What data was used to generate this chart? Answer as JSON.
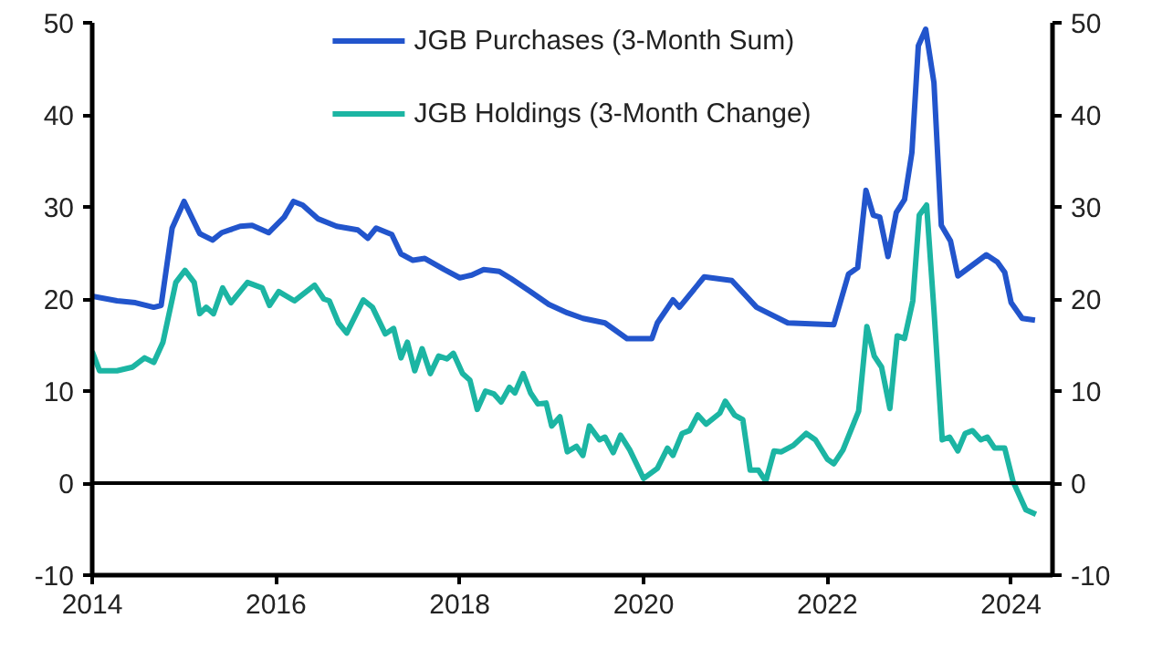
{
  "chart_data": {
    "type": "line",
    "xlim": [
      2014,
      2024.45
    ],
    "xticks": [
      2014,
      2016,
      2018,
      2020,
      2022,
      2024
    ],
    "ylim": [
      -10,
      50
    ],
    "yticks": [
      -10,
      0,
      10,
      20,
      30,
      40,
      50
    ],
    "y2lim": [
      -10,
      50
    ],
    "y2ticks": [
      -10,
      0,
      10,
      20,
      30,
      40,
      50
    ],
    "grid": false,
    "legend": "top",
    "marker": "none",
    "line_style": "solid",
    "ref_lines": [
      {
        "axis": "y",
        "value": 0,
        "color": "#000000"
      }
    ],
    "series": [
      {
        "name": "JGB Purchases (3-Month Sum)",
        "color": "#2255cc",
        "x": [
          2014.0,
          2014.27,
          2014.47,
          2014.67,
          2014.75,
          2014.87,
          2015.0,
          2015.17,
          2015.31,
          2015.41,
          2015.61,
          2015.74,
          2015.92,
          2016.09,
          2016.19,
          2016.29,
          2016.46,
          2016.66,
          2016.89,
          2017.0,
          2017.09,
          2017.26,
          2017.36,
          2017.49,
          2017.62,
          2017.83,
          2018.0,
          2018.13,
          2018.26,
          2018.43,
          2018.56,
          2018.77,
          2018.97,
          2019.17,
          2019.34,
          2019.58,
          2019.82,
          2020.09,
          2020.15,
          2020.32,
          2020.39,
          2020.66,
          2020.96,
          2021.23,
          2021.57,
          2022.07,
          2022.23,
          2022.33,
          2022.42,
          2022.5,
          2022.57,
          2022.66,
          2022.75,
          2022.84,
          2022.92,
          2022.99,
          2023.07,
          2023.16,
          2023.24,
          2023.34,
          2023.42,
          2023.73,
          2023.85,
          2023.93,
          2024.0,
          2024.12,
          2024.26
        ],
        "values": [
          20.3,
          19.8,
          19.6,
          19.1,
          19.3,
          27.7,
          30.6,
          27.1,
          26.4,
          27.2,
          27.9,
          28.0,
          27.2,
          28.9,
          30.6,
          30.2,
          28.7,
          27.9,
          27.5,
          26.6,
          27.7,
          27.0,
          24.9,
          24.2,
          24.4,
          23.2,
          22.3,
          22.6,
          23.2,
          23.0,
          22.2,
          20.8,
          19.4,
          18.5,
          17.9,
          17.4,
          15.7,
          15.7,
          17.4,
          19.9,
          19.1,
          22.4,
          22.0,
          19.1,
          17.4,
          17.2,
          22.7,
          23.4,
          31.8,
          29.1,
          28.9,
          24.6,
          29.4,
          30.8,
          35.9,
          47.5,
          49.3,
          43.5,
          28.0,
          26.3,
          22.5,
          24.8,
          24.0,
          22.9,
          19.6,
          17.9,
          17.7
        ]
      },
      {
        "name": "JGB Holdings (3-Month Change)",
        "color": "#1cb5a3",
        "x": [
          2014.0,
          2014.08,
          2014.27,
          2014.44,
          2014.57,
          2014.67,
          2014.77,
          2014.91,
          2015.01,
          2015.11,
          2015.17,
          2015.24,
          2015.32,
          2015.42,
          2015.51,
          2015.69,
          2015.85,
          2015.93,
          2016.03,
          2016.2,
          2016.42,
          2016.52,
          2016.58,
          2016.68,
          2016.77,
          2016.95,
          2017.05,
          2017.19,
          2017.28,
          2017.36,
          2017.43,
          2017.51,
          2017.59,
          2017.68,
          2017.77,
          2017.86,
          2017.93,
          2018.03,
          2018.11,
          2018.19,
          2018.28,
          2018.37,
          2018.45,
          2018.54,
          2018.6,
          2018.69,
          2018.77,
          2018.85,
          2018.94,
          2019.0,
          2019.09,
          2019.17,
          2019.27,
          2019.34,
          2019.41,
          2019.52,
          2019.58,
          2019.67,
          2019.75,
          2019.85,
          2020.0,
          2020.15,
          2020.26,
          2020.32,
          2020.42,
          2020.5,
          2020.59,
          2020.68,
          2020.83,
          2020.89,
          2020.99,
          2021.08,
          2021.16,
          2021.25,
          2021.33,
          2021.42,
          2021.5,
          2021.63,
          2021.77,
          2021.87,
          2022.0,
          2022.07,
          2022.17,
          2022.34,
          2022.43,
          2022.51,
          2022.59,
          2022.68,
          2022.76,
          2022.84,
          2022.93,
          2023.0,
          2023.08,
          2023.16,
          2023.25,
          2023.33,
          2023.42,
          2023.5,
          2023.58,
          2023.67,
          2023.74,
          2023.82,
          2023.93,
          2024.02,
          2024.16,
          2024.27
        ],
        "values": [
          14.3,
          12.2,
          12.2,
          12.6,
          13.6,
          13.1,
          15.3,
          21.8,
          23.1,
          21.8,
          18.4,
          19.1,
          18.4,
          21.2,
          19.6,
          21.8,
          21.2,
          19.3,
          20.8,
          19.8,
          21.5,
          20.0,
          19.8,
          17.4,
          16.3,
          19.9,
          19.1,
          16.2,
          16.8,
          13.6,
          15.3,
          12.2,
          14.6,
          11.9,
          13.8,
          13.5,
          14.1,
          11.9,
          11.2,
          8.0,
          10.0,
          9.7,
          8.8,
          10.4,
          9.8,
          11.9,
          9.8,
          8.6,
          8.7,
          6.2,
          7.2,
          3.4,
          4.0,
          3.0,
          6.2,
          4.7,
          5.0,
          3.3,
          5.2,
          3.6,
          0.5,
          1.6,
          3.8,
          3.0,
          5.4,
          5.7,
          7.4,
          6.4,
          7.6,
          8.9,
          7.4,
          6.9,
          1.4,
          1.4,
          0.2,
          3.5,
          3.4,
          4.1,
          5.4,
          4.7,
          2.6,
          2.1,
          3.6,
          7.8,
          17.0,
          13.8,
          12.6,
          8.1,
          16.0,
          15.7,
          19.8,
          29.1,
          30.2,
          18.8,
          4.7,
          5.0,
          3.5,
          5.4,
          5.7,
          4.7,
          5.0,
          3.8,
          3.8,
          0.2,
          -2.9,
          -3.4
        ]
      }
    ]
  }
}
